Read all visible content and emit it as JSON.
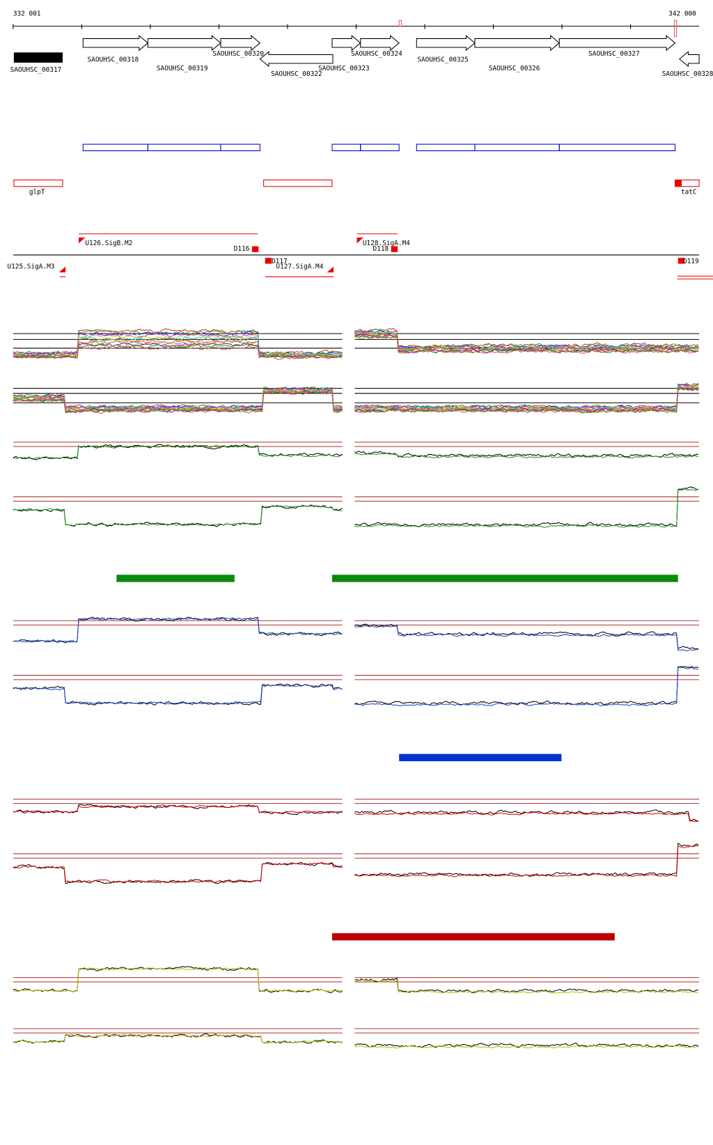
{
  "ruler": {
    "start": "332 001",
    "end": "342 000"
  },
  "genes": [
    {
      "label": "SAOUHSC_00317"
    },
    {
      "label": "SAOUHSC_00318"
    },
    {
      "label": "SAOUHSC_00319"
    },
    {
      "label": "SAOUHSC_00320"
    },
    {
      "label": "SAOUHSC_00322"
    },
    {
      "label": "SAOUHSC_00323"
    },
    {
      "label": "SAOUHSC_00324"
    },
    {
      "label": "SAOUHSC_00325"
    },
    {
      "label": "SAOUHSC_00326"
    },
    {
      "label": "SAOUHSC_00327"
    },
    {
      "label": "SAOUHSC_00328"
    }
  ],
  "operons": [
    {
      "label": "glpT"
    },
    {
      "label": "tatC"
    }
  ],
  "promoters": [
    {
      "label": "U125.SigA.M3"
    },
    {
      "label": "U126.SigB.M2"
    },
    {
      "label": "U127.SigA.M4"
    },
    {
      "label": "U128.SigA.M4"
    }
  ],
  "terminators": [
    {
      "label": "D116"
    },
    {
      "label": "D117"
    },
    {
      "label": "D118"
    },
    {
      "label": "D119"
    }
  ]
}
